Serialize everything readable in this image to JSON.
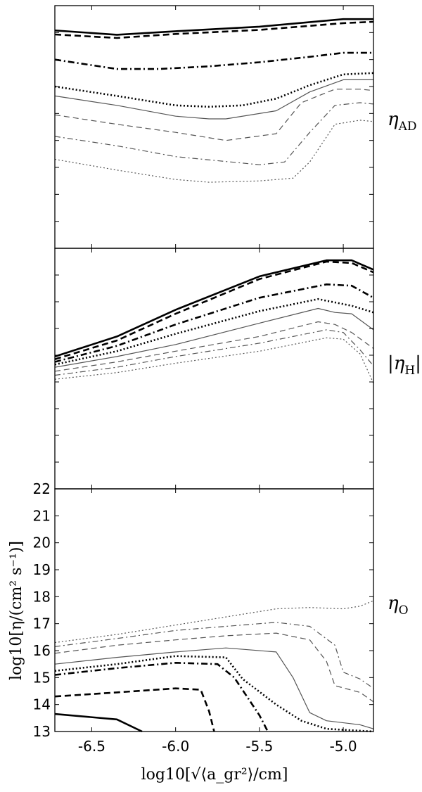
{
  "chart_data": {
    "type": "line",
    "xlabel": "log10[√⟨a_gr²⟩/cm]",
    "ylabel": "log10[η/(cm² s⁻¹)]",
    "xlim": [
      -6.72,
      -4.82
    ],
    "x_ticks": [
      -6.5,
      -6.0,
      -5.5,
      -5.0
    ],
    "x_tick_labels": [
      "-6.5",
      "-6.0",
      "-5.5",
      "-5.0"
    ],
    "grid": false,
    "panels": [
      {
        "label": "η_AD",
        "label_main": "η",
        "label_sub": "AD",
        "ylim": [
          13,
          22
        ],
        "y_ticks": [],
        "y_tick_labels": [],
        "series": [
          {
            "x": [
              -6.72,
              -6.35,
              -6.0,
              -5.5,
              -5.0,
              -4.82
            ],
            "y": [
              21.08,
              20.92,
              21.05,
              21.22,
              21.5,
              21.5
            ]
          },
          {
            "x": [
              -6.72,
              -6.35,
              -6.0,
              -5.5,
              -5.0,
              -4.82
            ],
            "y": [
              20.93,
              20.8,
              20.95,
              21.1,
              21.35,
              21.4
            ]
          },
          {
            "x": [
              -6.72,
              -6.35,
              -6.1,
              -5.8,
              -5.5,
              -5.2,
              -5.0,
              -4.82
            ],
            "y": [
              20.0,
              19.65,
              19.65,
              19.75,
              19.9,
              20.1,
              20.25,
              20.25
            ]
          },
          {
            "x": [
              -6.72,
              -6.35,
              -6.0,
              -5.8,
              -5.6,
              -5.4,
              -5.2,
              -5.0,
              -4.82
            ],
            "y": [
              19.0,
              18.65,
              18.3,
              18.25,
              18.3,
              18.55,
              19.05,
              19.45,
              19.5
            ]
          },
          {
            "x": [
              -6.72,
              -6.35,
              -6.0,
              -5.8,
              -5.7,
              -5.4,
              -5.2,
              -5.0,
              -4.82
            ],
            "y": [
              18.65,
              18.3,
              17.9,
              17.8,
              17.8,
              18.1,
              18.8,
              19.25,
              19.25
            ]
          },
          {
            "x": [
              -6.72,
              -6.35,
              -6.0,
              -5.7,
              -5.4,
              -5.25,
              -5.05,
              -4.9,
              -4.82
            ],
            "y": [
              17.95,
              17.6,
              17.3,
              17.0,
              17.25,
              18.4,
              18.9,
              18.9,
              18.85
            ]
          },
          {
            "x": [
              -6.72,
              -6.35,
              -6.0,
              -5.5,
              -5.35,
              -5.2,
              -5.05,
              -4.9,
              -4.82
            ],
            "y": [
              17.15,
              16.8,
              16.4,
              16.1,
              16.2,
              17.3,
              18.3,
              18.4,
              18.35
            ]
          },
          {
            "x": [
              -6.72,
              -6.35,
              -6.0,
              -5.8,
              -5.5,
              -5.3,
              -5.2,
              -5.05,
              -4.9,
              -4.82
            ],
            "y": [
              16.3,
              15.9,
              15.55,
              15.45,
              15.5,
              15.6,
              16.2,
              17.6,
              17.75,
              17.7
            ]
          }
        ]
      },
      {
        "label": "|η_H|",
        "label_main": "|η",
        "label_sub": "H",
        "label_close": "|",
        "ylim": [
          13,
          22
        ],
        "y_ticks": [],
        "y_tick_labels": [],
        "series": [
          {
            "x": [
              -6.72,
              -6.35,
              -6.0,
              -5.5,
              -5.1,
              -4.95,
              -4.82
            ],
            "y": [
              17.95,
              18.7,
              19.7,
              20.95,
              21.55,
              21.55,
              21.2
            ]
          },
          {
            "x": [
              -6.72,
              -6.35,
              -6.0,
              -5.5,
              -5.1,
              -4.95,
              -4.82
            ],
            "y": [
              17.85,
              18.55,
              19.55,
              20.85,
              21.5,
              21.45,
              21.1
            ]
          },
          {
            "x": [
              -6.72,
              -6.35,
              -6.0,
              -5.5,
              -5.1,
              -4.95,
              -4.82
            ],
            "y": [
              17.75,
              18.35,
              19.15,
              20.15,
              20.65,
              20.6,
              20.15
            ]
          },
          {
            "x": [
              -6.72,
              -6.35,
              -6.0,
              -5.5,
              -5.15,
              -4.95,
              -4.82
            ],
            "y": [
              17.65,
              18.15,
              18.8,
              19.65,
              20.1,
              19.85,
              19.6
            ]
          },
          {
            "x": [
              -6.72,
              -6.35,
              -6.0,
              -5.5,
              -5.15,
              -5.05,
              -4.95,
              -4.82
            ],
            "y": [
              17.55,
              17.95,
              18.4,
              19.2,
              19.75,
              19.6,
              19.55,
              18.95
            ]
          },
          {
            "x": [
              -6.72,
              -6.35,
              -6.0,
              -5.5,
              -5.15,
              -5.05,
              -4.95,
              -4.82
            ],
            "y": [
              17.4,
              17.75,
              18.15,
              18.7,
              19.25,
              19.15,
              18.85,
              18.25
            ]
          },
          {
            "x": [
              -6.72,
              -6.35,
              -6.0,
              -5.5,
              -5.1,
              -5.0,
              -4.9,
              -4.82
            ],
            "y": [
              17.25,
              17.55,
              17.95,
              18.45,
              18.95,
              18.85,
              18.2,
              17.6
            ]
          },
          {
            "x": [
              -6.72,
              -6.35,
              -6.0,
              -5.5,
              -5.1,
              -5.0,
              -4.9,
              -4.82
            ],
            "y": [
              17.1,
              17.35,
              17.7,
              18.15,
              18.65,
              18.6,
              18.05,
              16.95
            ]
          }
        ]
      },
      {
        "label": "η_O",
        "label_main": "η",
        "label_sub": "O",
        "ylim": [
          13,
          22
        ],
        "y_ticks": [
          13,
          14,
          15,
          16,
          17,
          18,
          19,
          20,
          21,
          22
        ],
        "y_tick_labels": [
          "13",
          "14",
          "15",
          "16",
          "17",
          "18",
          "19",
          "20",
          "21",
          "22"
        ],
        "series": [
          {
            "x": [
              -6.72,
              -6.35,
              -6.2
            ],
            "y": [
              13.65,
              13.45,
              13.0
            ]
          },
          {
            "x": [
              -6.72,
              -6.35,
              -6.0,
              -5.85,
              -5.8,
              -5.77
            ],
            "y": [
              14.3,
              14.45,
              14.6,
              14.55,
              13.75,
              13.0
            ]
          },
          {
            "x": [
              -6.72,
              -6.35,
              -6.0,
              -5.75,
              -5.65,
              -5.5,
              -5.45
            ],
            "y": [
              15.1,
              15.35,
              15.55,
              15.5,
              15.0,
              13.6,
              13.0
            ]
          },
          {
            "x": [
              -6.72,
              -6.35,
              -6.0,
              -5.7,
              -5.6,
              -5.4,
              -5.25,
              -5.1,
              -4.82
            ],
            "y": [
              15.25,
              15.5,
              15.8,
              15.75,
              14.95,
              14.0,
              13.4,
              13.1,
              13.0
            ]
          },
          {
            "x": [
              -6.72,
              -6.35,
              -6.0,
              -5.7,
              -5.4,
              -5.3,
              -5.2,
              -5.1,
              -4.9,
              -4.82
            ],
            "y": [
              15.5,
              15.75,
              15.95,
              16.1,
              15.95,
              15.0,
              13.7,
              13.4,
              13.25,
              13.1
            ]
          },
          {
            "x": [
              -6.72,
              -6.35,
              -6.0,
              -5.7,
              -5.4,
              -5.2,
              -5.1,
              -5.05,
              -4.9,
              -4.82
            ],
            "y": [
              15.9,
              16.2,
              16.4,
              16.55,
              16.65,
              16.4,
              15.6,
              14.7,
              14.45,
              14.1
            ]
          },
          {
            "x": [
              -6.72,
              -6.35,
              -6.0,
              -5.7,
              -5.4,
              -5.2,
              -5.05,
              -5.0,
              -4.9,
              -4.82
            ],
            "y": [
              16.15,
              16.45,
              16.75,
              16.9,
              17.05,
              16.9,
              16.2,
              15.2,
              14.95,
              14.6
            ]
          },
          {
            "x": [
              -6.72,
              -6.35,
              -6.0,
              -5.7,
              -5.4,
              -5.2,
              -5.0,
              -4.9,
              -4.82
            ],
            "y": [
              16.3,
              16.6,
              16.95,
              17.25,
              17.55,
              17.6,
              17.55,
              17.65,
              17.85
            ]
          }
        ]
      }
    ],
    "series_styles": [
      {
        "color": "#000000",
        "width": 2.6,
        "dash": "none"
      },
      {
        "color": "#000000",
        "width": 2.6,
        "dash": "9,5"
      },
      {
        "color": "#000000",
        "width": 2.6,
        "dash": "9,4,2,4"
      },
      {
        "color": "#000000",
        "width": 2.6,
        "dash": "2,3"
      },
      {
        "color": "#555555",
        "width": 1.2,
        "dash": "none"
      },
      {
        "color": "#555555",
        "width": 1.2,
        "dash": "8,5"
      },
      {
        "color": "#555555",
        "width": 1.2,
        "dash": "8,4,2,4"
      },
      {
        "color": "#555555",
        "width": 1.2,
        "dash": "2,3"
      }
    ]
  }
}
